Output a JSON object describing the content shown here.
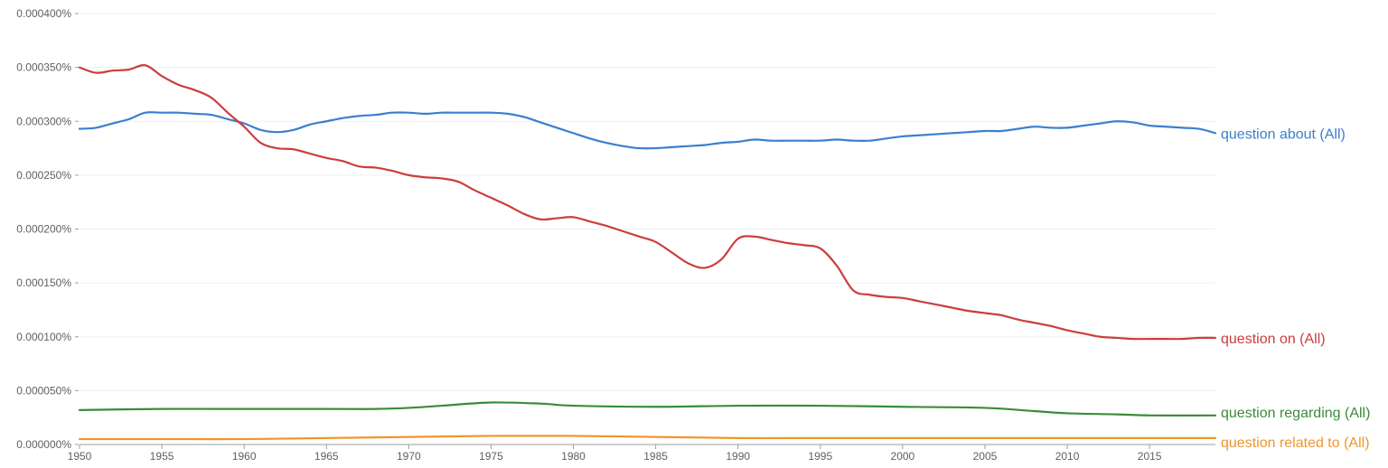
{
  "chart_data": {
    "type": "line",
    "title": "",
    "xlabel": "",
    "ylabel": "",
    "xlim": [
      1950,
      2019
    ],
    "ylim": [
      0,
      0.0004
    ],
    "grid": true,
    "x_ticks": [
      1950,
      1955,
      1960,
      1965,
      1970,
      1975,
      1980,
      1985,
      1990,
      1995,
      2000,
      2005,
      2010,
      2015
    ],
    "y_ticks": [
      0,
      5e-05,
      0.0001,
      0.00015,
      0.0002,
      0.00025,
      0.0003,
      0.00035,
      0.0004
    ],
    "x_tick_labels": [
      "1950",
      "1955",
      "1960",
      "1965",
      "1970",
      "1975",
      "1980",
      "1985",
      "1990",
      "1995",
      "2000",
      "2005",
      "2010",
      "2015"
    ],
    "y_tick_labels": [
      "0.000000%",
      "0.000050%",
      "0.000100%",
      "0.000150%",
      "0.000200%",
      "0.000250%",
      "0.000300%",
      "0.000350%",
      "0.000400%"
    ],
    "legend_placement": "right, at line ends",
    "series": [
      {
        "name": "question about (All)",
        "color": "#3b7fce",
        "x": [
          1950,
          1951,
          1952,
          1953,
          1954,
          1955,
          1956,
          1957,
          1958,
          1959,
          1960,
          1961,
          1962,
          1963,
          1964,
          1965,
          1966,
          1967,
          1968,
          1969,
          1970,
          1971,
          1972,
          1973,
          1974,
          1975,
          1976,
          1977,
          1978,
          1979,
          1980,
          1981,
          1982,
          1983,
          1984,
          1985,
          1986,
          1987,
          1988,
          1989,
          1990,
          1991,
          1992,
          1993,
          1994,
          1995,
          1996,
          1997,
          1998,
          1999,
          2000,
          2001,
          2002,
          2003,
          2004,
          2005,
          2006,
          2007,
          2008,
          2009,
          2010,
          2011,
          2012,
          2013,
          2014,
          2015,
          2016,
          2017,
          2018,
          2019
        ],
        "values": [
          0.000293,
          0.000294,
          0.000298,
          0.000302,
          0.000308,
          0.000308,
          0.000308,
          0.000307,
          0.000306,
          0.000302,
          0.000298,
          0.000292,
          0.00029,
          0.000292,
          0.000297,
          0.0003,
          0.000303,
          0.000305,
          0.000306,
          0.000308,
          0.000308,
          0.000307,
          0.000308,
          0.000308,
          0.000308,
          0.000308,
          0.000307,
          0.000304,
          0.000299,
          0.000294,
          0.000289,
          0.000284,
          0.00028,
          0.000277,
          0.000275,
          0.000275,
          0.000276,
          0.000277,
          0.000278,
          0.00028,
          0.000281,
          0.000283,
          0.000282,
          0.000282,
          0.000282,
          0.000282,
          0.000283,
          0.000282,
          0.000282,
          0.000284,
          0.000286,
          0.000287,
          0.000288,
          0.000289,
          0.00029,
          0.000291,
          0.000291,
          0.000293,
          0.000295,
          0.000294,
          0.000294,
          0.000296,
          0.000298,
          0.0003,
          0.000299,
          0.000296,
          0.000295,
          0.000294,
          0.000293,
          0.000289
        ]
      },
      {
        "name": "question on (All)",
        "color": "#cc3d3d",
        "x": [
          1950,
          1951,
          1952,
          1953,
          1954,
          1955,
          1956,
          1957,
          1958,
          1959,
          1960,
          1961,
          1962,
          1963,
          1964,
          1965,
          1966,
          1967,
          1968,
          1969,
          1970,
          1971,
          1972,
          1973,
          1974,
          1975,
          1976,
          1977,
          1978,
          1979,
          1980,
          1981,
          1982,
          1983,
          1984,
          1985,
          1986,
          1987,
          1988,
          1989,
          1990,
          1991,
          1992,
          1993,
          1994,
          1995,
          1996,
          1997,
          1998,
          1999,
          2000,
          2001,
          2002,
          2003,
          2004,
          2005,
          2006,
          2007,
          2008,
          2009,
          2010,
          2011,
          2012,
          2013,
          2014,
          2015,
          2016,
          2017,
          2018,
          2019
        ],
        "values": [
          0.00035,
          0.000345,
          0.000347,
          0.000348,
          0.000352,
          0.000342,
          0.000334,
          0.000329,
          0.000322,
          0.000308,
          0.000295,
          0.00028,
          0.000275,
          0.000274,
          0.00027,
          0.000266,
          0.000263,
          0.000258,
          0.000257,
          0.000254,
          0.00025,
          0.000248,
          0.000247,
          0.000244,
          0.000236,
          0.000229,
          0.000222,
          0.000214,
          0.000209,
          0.00021,
          0.000211,
          0.000207,
          0.000203,
          0.000198,
          0.000193,
          0.000188,
          0.000178,
          0.000168,
          0.000164,
          0.000172,
          0.000191,
          0.000193,
          0.00019,
          0.000187,
          0.000185,
          0.000182,
          0.000166,
          0.000143,
          0.000139,
          0.000137,
          0.000136,
          0.000133,
          0.00013,
          0.000127,
          0.000124,
          0.000122,
          0.00012,
          0.000116,
          0.000113,
          0.00011,
          0.000106,
          0.000103,
          0.0001,
          9.9e-05,
          9.8e-05,
          9.8e-05,
          9.8e-05,
          9.8e-05,
          9.9e-05,
          9.9e-05
        ]
      },
      {
        "name": "question regarding (All)",
        "color": "#3a8c3a",
        "x": [
          1950,
          1955,
          1960,
          1965,
          1968,
          1970,
          1972,
          1975,
          1978,
          1980,
          1985,
          1990,
          1995,
          2000,
          2005,
          2008,
          2010,
          2013,
          2015,
          2019
        ],
        "values": [
          3.2e-05,
          3.3e-05,
          3.3e-05,
          3.3e-05,
          3.3e-05,
          3.4e-05,
          3.6e-05,
          3.9e-05,
          3.8e-05,
          3.6e-05,
          3.5e-05,
          3.6e-05,
          3.6e-05,
          3.5e-05,
          3.4e-05,
          3.1e-05,
          2.9e-05,
          2.8e-05,
          2.7e-05,
          2.7e-05
        ]
      },
      {
        "name": "question related to (All)",
        "color": "#f0962a",
        "x": [
          1950,
          1955,
          1960,
          1965,
          1970,
          1975,
          1980,
          1985,
          1990,
          1995,
          2000,
          2005,
          2010,
          2015,
          2019
        ],
        "values": [
          5e-06,
          5e-06,
          5e-06,
          6e-06,
          7e-06,
          8e-06,
          8e-06,
          7e-06,
          6e-06,
          6e-06,
          6e-06,
          6e-06,
          6e-06,
          6e-06,
          6e-06
        ]
      }
    ]
  }
}
